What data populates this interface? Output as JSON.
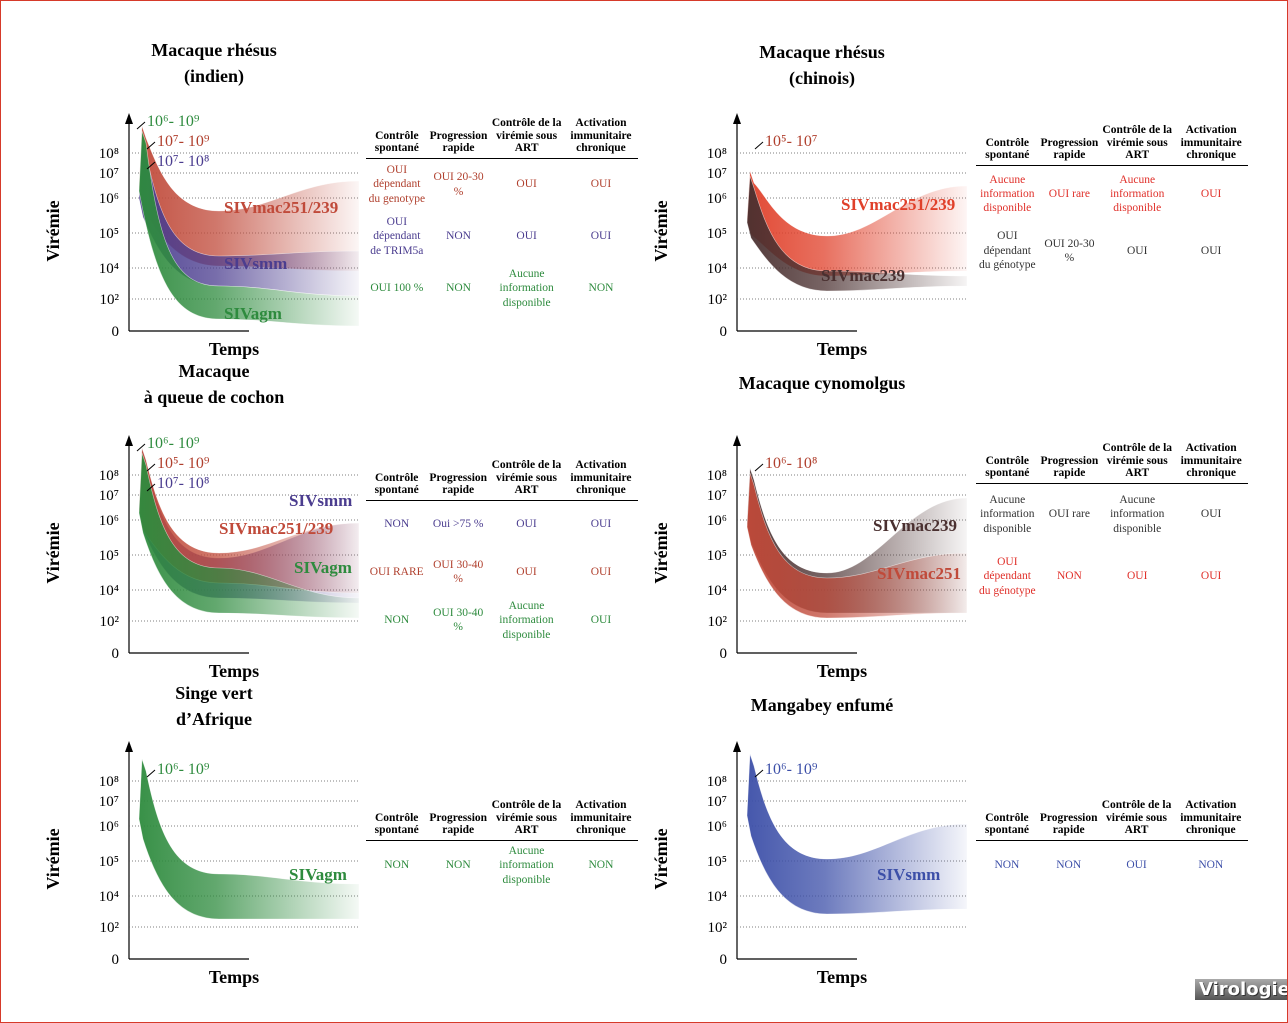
{
  "panels": [
    {
      "title": [
        "Macaque rhésus",
        "(indien)"
      ],
      "yaxis_label": "Virémie",
      "xaxis_label": "Temps",
      "yticks": [
        "10⁸",
        "10⁷",
        "10⁶",
        "10⁵",
        "10⁴",
        "10²",
        "0"
      ],
      "peaks": [
        {
          "text": "10⁶- 10⁹",
          "color": "#2e8b3e"
        },
        {
          "text": "10⁷- 10⁹",
          "color": "#b0402e"
        },
        {
          "text": "10⁷- 10⁸",
          "color": "#4b3d8f"
        }
      ],
      "strains": [
        {
          "name": "SIVmac251/239",
          "color": "#c04a3a"
        },
        {
          "name": "SIVsmm",
          "color": "#4b3d8f"
        },
        {
          "name": "SIVagm",
          "color": "#2e8b3e"
        }
      ],
      "table": {
        "headers": [
          "Contrôle spontané",
          "Progression rapide",
          "Contrôle de la virémie sous ART",
          "Activation immunitaire chronique"
        ],
        "rows": [
          [
            "OUI dépendant du genotype",
            "OUI 20-30 %",
            "OUI",
            "OUI"
          ],
          [
            "OUI dépendant de TRIM5a",
            "NON",
            "OUI",
            "OUI"
          ],
          [
            "OUI 100 %",
            "NON",
            "Aucune information disponible",
            "NON"
          ]
        ],
        "row_colors": [
          "#b0402e",
          "#4b3d8f",
          "#2e8b3e"
        ]
      }
    },
    {
      "title": [
        "Macaque rhésus",
        "(chinois)"
      ],
      "yaxis_label": "Virémie",
      "xaxis_label": "Temps",
      "yticks": [
        "10⁸",
        "10⁷",
        "10⁶",
        "10⁵",
        "10⁴",
        "10²",
        "0"
      ],
      "peaks": [
        {
          "text": "10⁵- 10⁷",
          "color": "#b0402e"
        }
      ],
      "strains": [
        {
          "name": "SIVmac251/239",
          "color": "#e0402a"
        },
        {
          "name": "SIVmac239",
          "color": "#4a3030"
        }
      ],
      "table": {
        "headers": [
          "Contrôle spontané",
          "Progression rapide",
          "Contrôle de la virémie sous ART",
          "Activation immunitaire chronique"
        ],
        "rows": [
          [
            "Aucune information disponible",
            "OUI rare",
            "Aucune information disponible",
            "OUI"
          ],
          [
            "OUI dépendant du génotype",
            "OUI 20-30 %",
            "OUI",
            "OUI"
          ]
        ],
        "row_colors": [
          "#e0302a",
          "#333333"
        ]
      }
    },
    {
      "title": [
        "Macaque",
        "à queue de cochon"
      ],
      "yaxis_label": "Virémie",
      "xaxis_label": "Temps",
      "yticks": [
        "10⁸",
        "10⁷",
        "10⁶",
        "10⁵",
        "10⁴",
        "10²",
        "0"
      ],
      "peaks": [
        {
          "text": "10⁶- 10⁹",
          "color": "#2e8b3e"
        },
        {
          "text": "10⁵- 10⁹",
          "color": "#b0402e"
        },
        {
          "text": "10⁷- 10⁸",
          "color": "#4b3d8f"
        }
      ],
      "strains": [
        {
          "name": "SIVsmm",
          "color": "#4b3d8f"
        },
        {
          "name": "SIVmac251/239",
          "color": "#c04a3a"
        },
        {
          "name": "SIVagm",
          "color": "#2e8b3e"
        }
      ],
      "table": {
        "headers": [
          "Contrôle spontané",
          "Progression rapide",
          "Contrôle de la virémie sous ART",
          "Activation immunitaire chronique"
        ],
        "rows": [
          [
            "NON",
            "Oui >75 %",
            "OUI",
            "OUI"
          ],
          [
            "OUI RARE",
            "OUI 30-40 %",
            "OUI",
            "OUI"
          ],
          [
            "NON",
            "OUI 30-40 %",
            "Aucune information disponible",
            "OUI"
          ]
        ],
        "row_colors": [
          "#4b3d8f",
          "#b0402e",
          "#2e8b3e"
        ]
      }
    },
    {
      "title": [
        "Macaque cynomolgus"
      ],
      "yaxis_label": "Virémie",
      "xaxis_label": "Temps",
      "yticks": [
        "10⁸",
        "10⁷",
        "10⁶",
        "10⁵",
        "10⁴",
        "10²",
        "0"
      ],
      "peaks": [
        {
          "text": "10⁶- 10⁸",
          "color": "#b0402e"
        }
      ],
      "strains": [
        {
          "name": "SIVmac239",
          "color": "#4a3030"
        },
        {
          "name": "SIVmac251",
          "color": "#c04a3a"
        }
      ],
      "table": {
        "headers": [
          "Contrôle spontané",
          "Progression rapide",
          "Contrôle de la virémie sous ART",
          "Activation immunitaire chronique"
        ],
        "rows": [
          [
            "Aucune information disponible",
            "OUI rare",
            "Aucune information disponible",
            "OUI"
          ],
          [
            "OUI dépendant du génotype",
            "NON",
            "OUI",
            "OUI"
          ]
        ],
        "row_colors": [
          "#333333",
          "#e0302a"
        ]
      }
    },
    {
      "title": [
        "Singe vert",
        "d’Afrique"
      ],
      "yaxis_label": "Virémie",
      "xaxis_label": "Temps",
      "yticks": [
        "10⁸",
        "10⁷",
        "10⁶",
        "10⁵",
        "10⁴",
        "10²",
        "0"
      ],
      "peaks": [
        {
          "text": "10⁶- 10⁹",
          "color": "#2e8b3e"
        }
      ],
      "strains": [
        {
          "name": "SIVagm",
          "color": "#2e8b3e"
        }
      ],
      "table": {
        "headers": [
          "Contrôle spontané",
          "Progression rapide",
          "Contrôle de la virémie sous ART",
          "Activation immunitaire chronique"
        ],
        "rows": [
          [
            "NON",
            "NON",
            "Aucune information disponible",
            "NON"
          ]
        ],
        "row_colors": [
          "#2e8b3e"
        ]
      }
    },
    {
      "title": [
        "Mangabey enfumé"
      ],
      "yaxis_label": "Virémie",
      "xaxis_label": "Temps",
      "yticks": [
        "10⁸",
        "10⁷",
        "10⁶",
        "10⁵",
        "10⁴",
        "10²",
        "0"
      ],
      "peaks": [
        {
          "text": "10⁶- 10⁹",
          "color": "#3c4fa8"
        }
      ],
      "strains": [
        {
          "name": "SIVsmm",
          "color": "#3c4fa8"
        }
      ],
      "table": {
        "headers": [
          "Contrôle spontané",
          "Progression rapide",
          "Contrôle de la virémie sous ART",
          "Activation immunitaire chronique"
        ],
        "rows": [
          [
            "NON",
            "NON",
            "OUI",
            "NON"
          ]
        ],
        "row_colors": [
          "#3c4fa8"
        ]
      }
    }
  ],
  "logo": "Virologie"
}
